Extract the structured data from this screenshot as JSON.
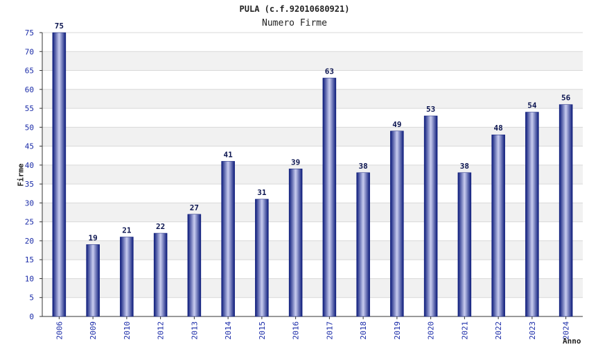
{
  "chart_data": {
    "type": "bar",
    "title": "PULA (c.f.92010680921)",
    "subtitle": "Numero Firme",
    "xlabel": "Anno",
    "ylabel": "Firme",
    "ylim": [
      0,
      75
    ],
    "yticks": [
      0,
      5,
      10,
      15,
      20,
      25,
      30,
      35,
      40,
      45,
      50,
      55,
      60,
      65,
      70,
      75
    ],
    "grid": true,
    "legend": "none",
    "categories": [
      "2006",
      "2009",
      "2010",
      "2012",
      "2013",
      "2014",
      "2015",
      "2016",
      "2017",
      "2018",
      "2019",
      "2020",
      "2021",
      "2022",
      "2023",
      "2024"
    ],
    "values": [
      75,
      19,
      21,
      22,
      27,
      41,
      31,
      39,
      63,
      38,
      49,
      53,
      38,
      48,
      54,
      56
    ],
    "colors": {
      "bar_dark": "#0b1a7a",
      "bar_light": "#c9cdf0",
      "band": "#f1f1f1",
      "tick_text": "#1a2ba8",
      "label_text": "#0b1450"
    }
  }
}
